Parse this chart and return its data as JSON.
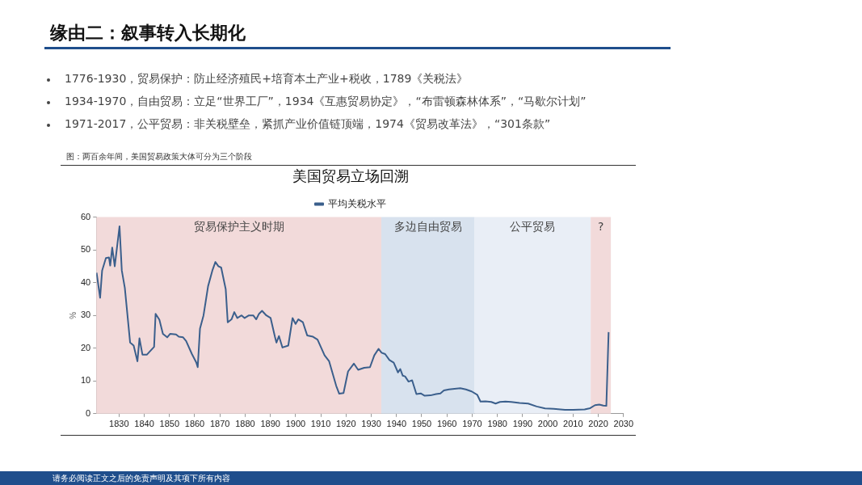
{
  "chart_data": {
    "type": "line",
    "title": "美国贸易立场回溯",
    "ylabel": "%",
    "annotations": [
      "缘由二：叙事转入长期化",
      "1776-1930，贸易保护：防止经济殖民+培育本土产业+税收，1789《关税法》",
      "1934-1970，自由贸易：立足“世界工厂”，1934《互惠贸易协定》，“布雷顿森林体系”，“马歇尔计划”",
      "1971-2017，公平贸易：非关税壁垒，紧抓产业价值链顶端，1974《贸易改革法》，“301条款”",
      "图：两百余年间，美国贸易政策大体可分为三个阶段",
      "请务必阅读正文之后的免责声明及其项下所有内容"
    ],
    "series": [
      {
        "name": "平均关税水平",
        "color": "#3b5f8c",
        "x": [
          1821.1,
          1822.5,
          1823.3,
          1824.8,
          1826,
          1826.5,
          1827.3,
          1828.3,
          1830.2,
          1831.1,
          1832.3,
          1834.4,
          1835.8,
          1837.3,
          1838.1,
          1839.3,
          1841,
          1843.9,
          1844.5,
          1846,
          1847.4,
          1849.1,
          1850.3,
          1852.6,
          1853.7,
          1855.4,
          1856.6,
          1858.9,
          1860.6,
          1861.2,
          1862.1,
          1863.5,
          1865.3,
          1867,
          1868.2,
          1869.4,
          1870.5,
          1872.3,
          1873.1,
          1874.6,
          1875.7,
          1876.9,
          1878.6,
          1879.8,
          1881.5,
          1883.2,
          1884.4,
          1885.5,
          1886.7,
          1888.4,
          1890.1,
          1891.8,
          1892.4,
          1893.4,
          1894.8,
          1897.1,
          1898.8,
          1900,
          1901.1,
          1902.9,
          1904.6,
          1906.9,
          1908.7,
          1911.5,
          1913.3,
          1916.1,
          1917.3,
          1919,
          1920.8,
          1923.1,
          1924.8,
          1927.2,
          1929.5,
          1931.2,
          1932.9,
          1934.1,
          1935.5,
          1937.2,
          1938.9,
          1940.6,
          1941.5,
          1942.5,
          1943.4,
          1944.8,
          1946.2,
          1947.9,
          1949.6,
          1951.2,
          1953.5,
          1955.7,
          1957.4,
          1958.8,
          1960.8,
          1963,
          1965.3,
          1967.5,
          1969.8,
          1972,
          1973.3,
          1975.3,
          1977.6,
          1979.3,
          1981,
          1983.2,
          1985.5,
          1988.8,
          1992.2,
          1995.6,
          1998.9,
          2002.3,
          2006.8,
          2010.1,
          2014.6,
          2016.8,
          2018.7,
          2020.4,
          2022,
          2023.2,
          2024.1
        ],
        "values": [
          43,
          35.4,
          43.7,
          47.5,
          47.7,
          45.2,
          50.7,
          45,
          57.2,
          43.7,
          38.4,
          21.7,
          20.8,
          16,
          23,
          18,
          18,
          20.4,
          30.5,
          28.7,
          24.4,
          23.3,
          24.4,
          24.2,
          23.5,
          23.3,
          22.2,
          18.2,
          15.7,
          14.2,
          26,
          30,
          38.9,
          43.7,
          46.3,
          45,
          44.6,
          38,
          27.9,
          28.8,
          31,
          29.2,
          30,
          29.2,
          30,
          30,
          28.8,
          30.5,
          31.4,
          30,
          29.2,
          23.5,
          21.7,
          23.7,
          20.2,
          20.8,
          29.2,
          27.4,
          28.8,
          27.9,
          23.9,
          23.5,
          22.6,
          17.8,
          16,
          8.5,
          6.1,
          6.3,
          12.9,
          15.3,
          13.4,
          14,
          14.2,
          17.8,
          19.8,
          18.6,
          18.2,
          16.4,
          15.6,
          12.6,
          13.6,
          11.6,
          11.4,
          9.8,
          10.2,
          6,
          6.2,
          5.5,
          5.6,
          6,
          6.2,
          7.1,
          7.4,
          7.6,
          7.8,
          7.4,
          6.8,
          5.8,
          3.7,
          3.8,
          3.6,
          3.1,
          3.6,
          3.7,
          3.6,
          3.3,
          3.1,
          2.2,
          1.6,
          1.5,
          1.2,
          1.2,
          1.3,
          1.7,
          2.6,
          2.8,
          2.5,
          2.4,
          24.9
        ]
      }
    ],
    "xlim": [
      1821,
      2030
    ],
    "xticks": [
      1830,
      1840,
      1850,
      1860,
      1870,
      1880,
      1890,
      1900,
      1910,
      1920,
      1930,
      1940,
      1950,
      1960,
      1970,
      1980,
      1990,
      2000,
      2010,
      2020,
      2030
    ],
    "ylim": [
      0,
      60
    ],
    "yticks": [
      0,
      10,
      20,
      30,
      40,
      50,
      60
    ],
    "bands": [
      {
        "axis": "x",
        "from": 1821,
        "to": 1934,
        "label": "贸易保护主义时期",
        "color": "#f2dada"
      },
      {
        "axis": "x",
        "from": 1934,
        "to": 1971,
        "label": "多边自由贸易",
        "color": "#d8e2ee"
      },
      {
        "axis": "x",
        "from": 1971,
        "to": 2017,
        "label": "公平贸易",
        "color": "#e9eef6"
      },
      {
        "axis": "x",
        "from": 2017,
        "to": 2025,
        "label": "?",
        "color": "#f2dada"
      }
    ],
    "grid": false,
    "legend": "top",
    "marker": "none",
    "line_style": "solid"
  }
}
